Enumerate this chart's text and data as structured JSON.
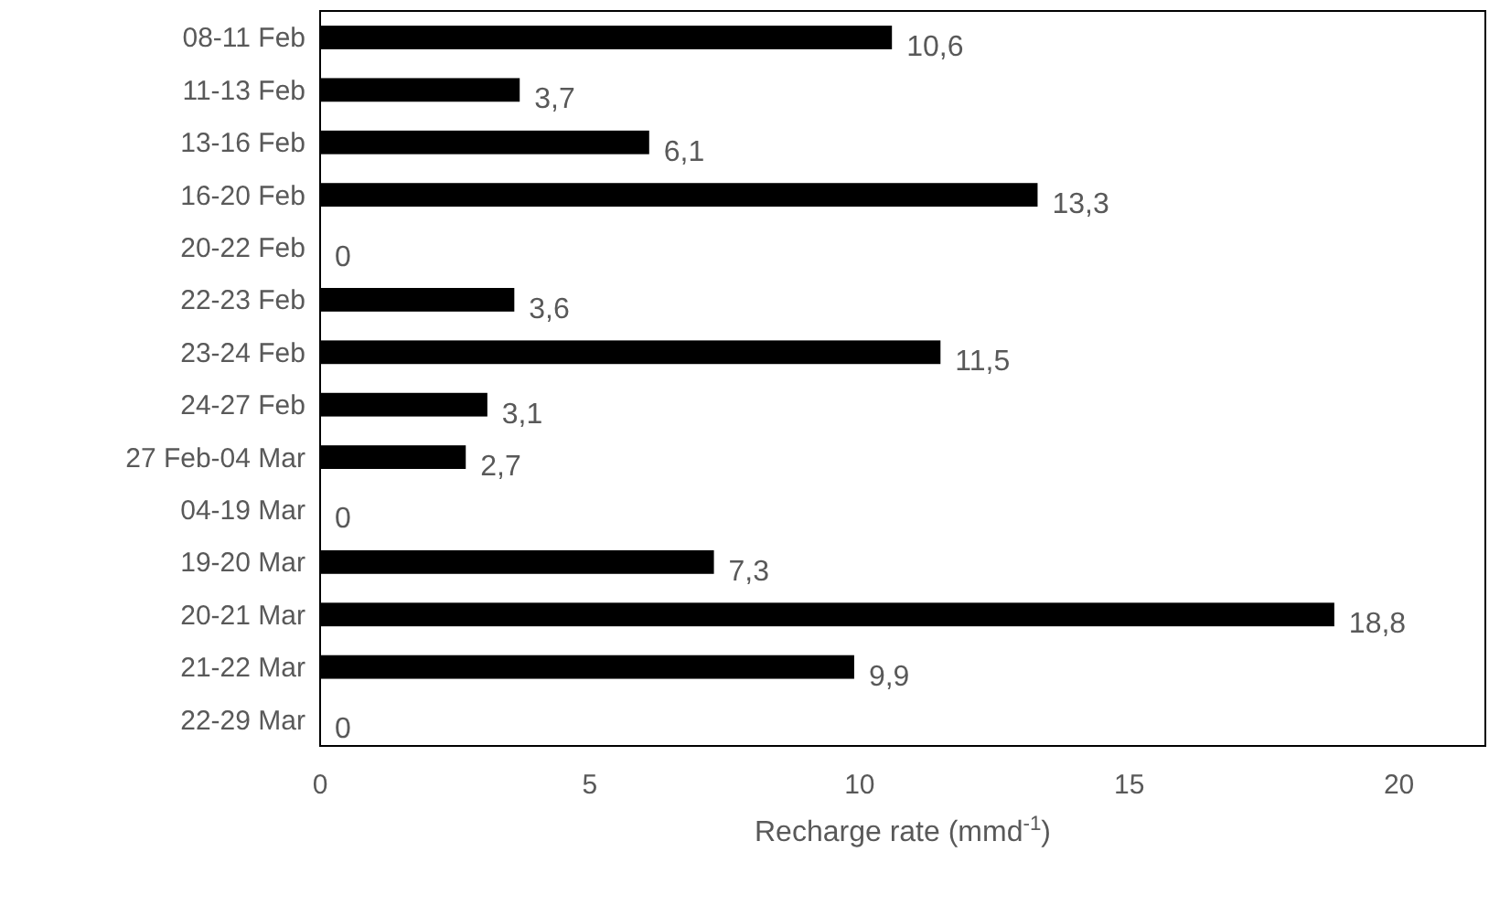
{
  "chart_data": {
    "type": "bar",
    "orientation": "horizontal",
    "xlabel": "Recharge rate (mmd$^{-1}$)",
    "categories": [
      "08-11 Feb",
      "11-13 Feb",
      "13-16 Feb",
      "16-20 Feb",
      "20-22 Feb",
      "22-23 Feb",
      "23-24 Feb",
      "24-27 Feb",
      "27 Feb-04 Mar",
      "04-19 Mar",
      "19-20 Mar",
      "20-21 Mar",
      "21-22 Mar",
      "22-29 Mar"
    ],
    "values": [
      10.6,
      3.7,
      6.1,
      13.3,
      0,
      3.6,
      11.5,
      3.1,
      2.7,
      0,
      7.3,
      18.8,
      9.9,
      0
    ],
    "value_labels": [
      "10,6",
      "3,7",
      "6,1",
      "13,3",
      "0",
      "3,6",
      "11,5",
      "3,1",
      "2,7",
      "0",
      "7,3",
      "18,8",
      "9,9",
      "0"
    ],
    "color": "#000000",
    "xlim": [
      0,
      21.6
    ],
    "xticks": [
      0,
      5,
      10,
      15,
      20
    ],
    "grid": false
  }
}
